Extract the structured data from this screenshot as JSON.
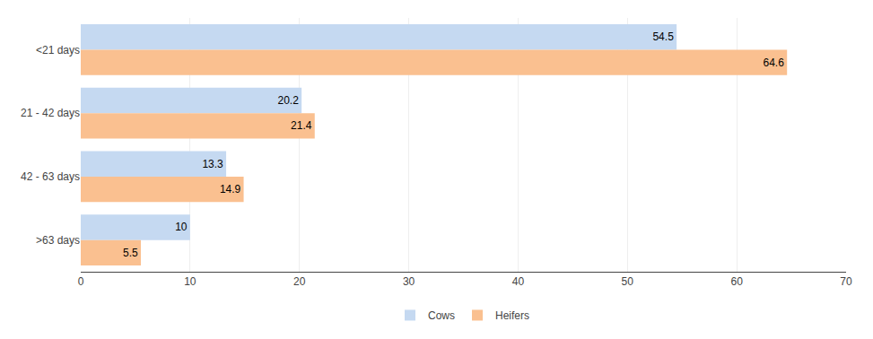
{
  "chart_data": {
    "type": "bar",
    "orientation": "horizontal",
    "categories": [
      "<21 days",
      "21 - 42 days",
      "42 - 63 days",
      ">63 days"
    ],
    "series": [
      {
        "name": "Cows",
        "color": "#c5d9f1",
        "values": [
          54.5,
          20.2,
          13.3,
          10.0
        ]
      },
      {
        "name": "Heifers",
        "color": "#fac090",
        "values": [
          64.6,
          21.4,
          14.9,
          5.5
        ]
      }
    ],
    "xlim": [
      0,
      70
    ],
    "xticks": [
      0,
      10,
      20,
      30,
      40,
      50,
      60,
      70
    ],
    "grid": true,
    "legend": "bottom",
    "data_labels": true
  }
}
